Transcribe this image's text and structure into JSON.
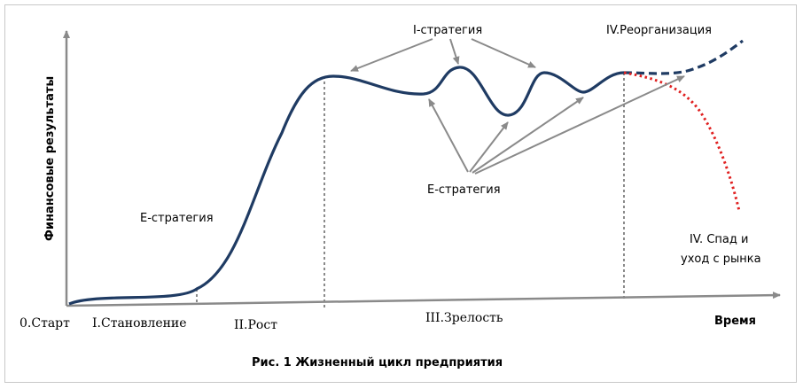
{
  "diagram": {
    "y_axis_label": "Финансовые результаты",
    "x_axis_label": "Время",
    "caption": "Рис. 1 Жизненный цикл предприятия",
    "stages": {
      "start": "0.Старт",
      "formation": "I.Становление",
      "growth": "II.Рост",
      "maturity": "III.Зрелость",
      "reorganization": "IV.Реорганизация",
      "decline_line1": "IV. Спад и",
      "decline_line2": "уход с рынка"
    },
    "strategies": {
      "i_strategy": "I-стратегия",
      "e_strategy_top": "Е-стратегия",
      "e_strategy_left": "Е-стратегия"
    },
    "colors": {
      "curve": "#1f3b63",
      "decline": "#e02020",
      "arrows": "#8a8a8a",
      "axes": "#8a8a8a"
    }
  }
}
